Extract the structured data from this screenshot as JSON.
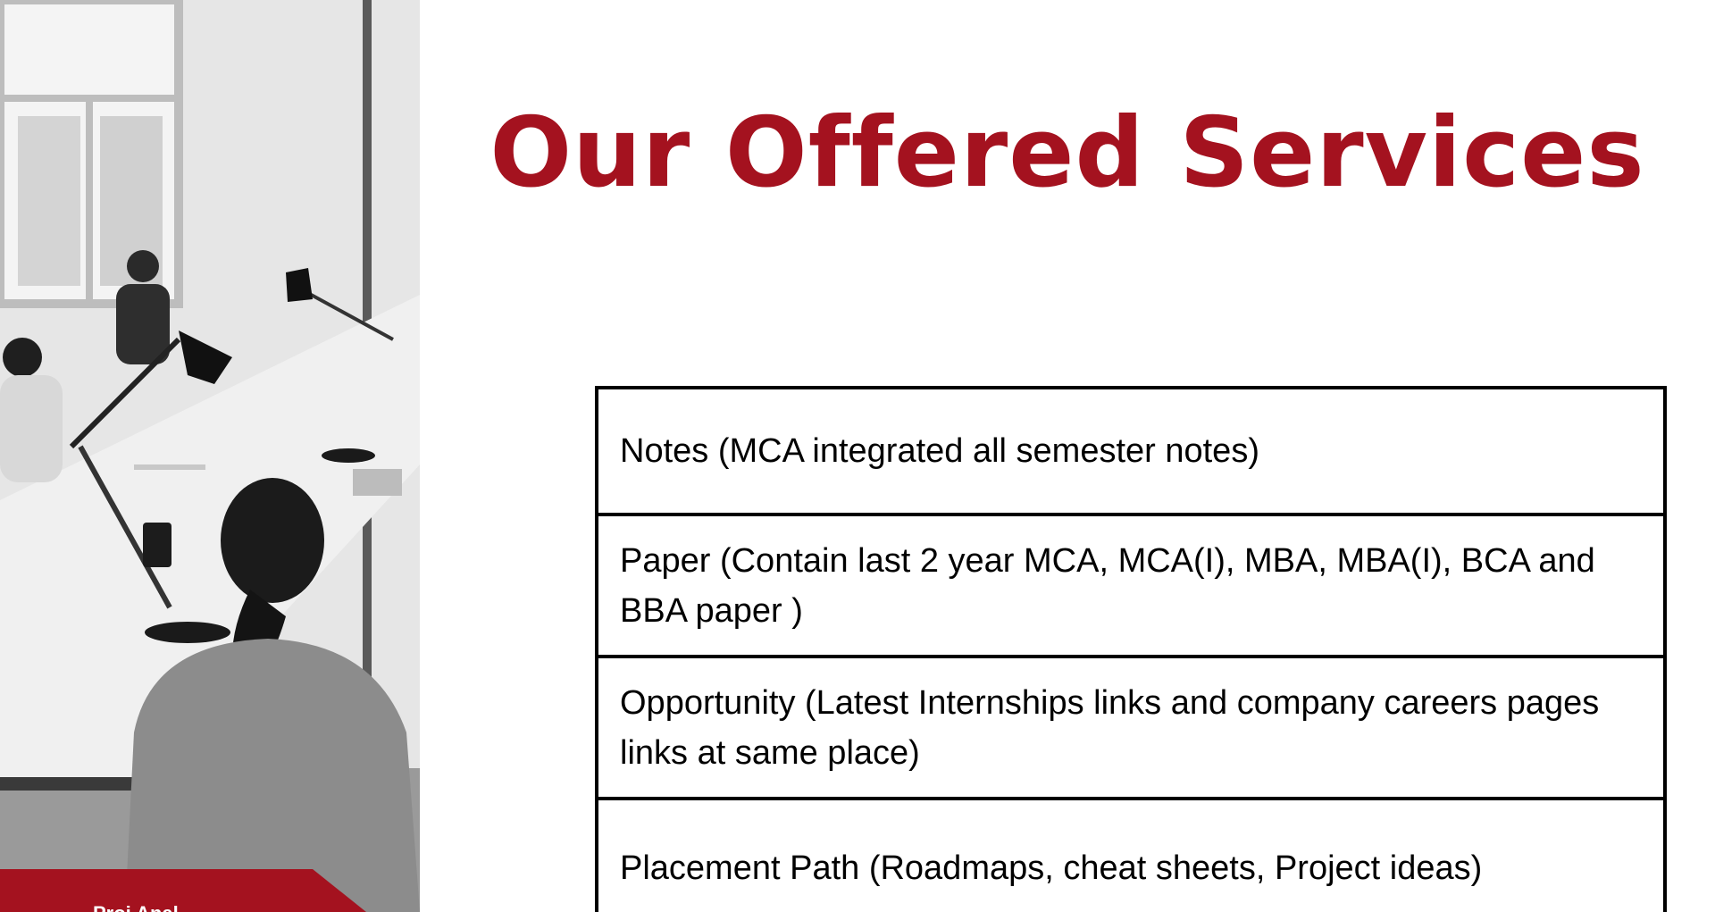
{
  "slide": {
    "title": "Our Offered Services",
    "accent_color": "#a4121f",
    "photo": {
      "description_icon": "office-meeting-photo",
      "banner_text": "Proj   Anal"
    },
    "services": [
      {
        "label": "Notes (MCA integrated all semester notes)"
      },
      {
        "label": "Paper (Contain last 2 year MCA, MCA(I), MBA, MBA(I), BCA and BBA paper )"
      },
      {
        "label": "Opportunity (Latest Internships links and company careers pages links at same place)"
      },
      {
        "label": "Placement Path (Roadmaps, cheat sheets, Project ideas)"
      }
    ]
  }
}
